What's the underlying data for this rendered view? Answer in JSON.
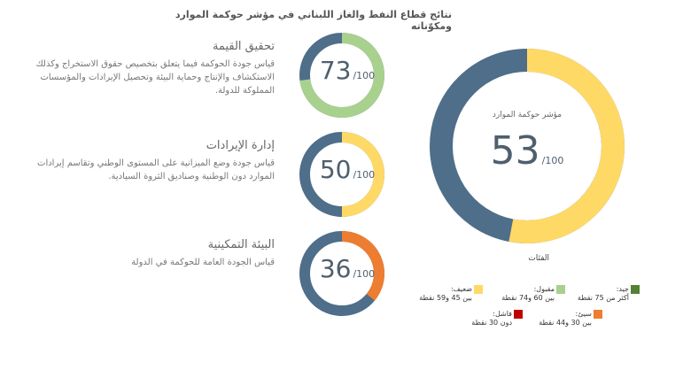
{
  "title": "نتائج قطاع النفط والغاز اللبناني في مؤشر حوكمة الموارد ومكوّناته",
  "max": {
    "value": 100,
    "label": "/100"
  },
  "track_color": "#4e6e8a",
  "chart_data": [
    {
      "type": "donut",
      "label": "مؤشر حوكمة الموارد",
      "value": 53,
      "color": "#ffd966"
    },
    {
      "type": "donut",
      "label": "تحقيق القيمة",
      "description": "قياس جودة الحوكمة فيما يتعلق بتخصيص حقوق الاستخراج وكذلك الاستكشاف والإنتاج وحماية البيئة وتحصيل الإيرادات والمؤسسات المملوكة للدولة.",
      "value": 73,
      "color": "#a9d18e"
    },
    {
      "type": "donut",
      "label": "إدارة الإيرادات",
      "description": "قياس جودة وضع الميزانية على المستوى الوطني وتقاسم إيرادات الموارد دون الوطنية وصناديق الثروة السيادية.",
      "value": 50,
      "color": "#ffd966"
    },
    {
      "type": "donut",
      "label": "البيئة التمكينية",
      "description": "قياس الجودة العامة للحوكمة في الدولة",
      "value": 36,
      "color": "#ed7d31"
    }
  ],
  "legend": {
    "title": "الفئات",
    "items": [
      {
        "name": "جيد:",
        "range": "أكثر من 75 نقطة",
        "color": "#548235"
      },
      {
        "name": "مقبول:",
        "range": "بين 60 و74 نقطة",
        "color": "#a9d18e"
      },
      {
        "name": "ضعيف:",
        "range": "بين 45 و59 نقطة",
        "color": "#ffd966"
      },
      {
        "name": "سيئ:",
        "range": "بين 30 و44 نقطة",
        "color": "#ed7d31"
      },
      {
        "name": "فاشل:",
        "range": "دون 30 نقطة",
        "color": "#c00000"
      }
    ]
  }
}
